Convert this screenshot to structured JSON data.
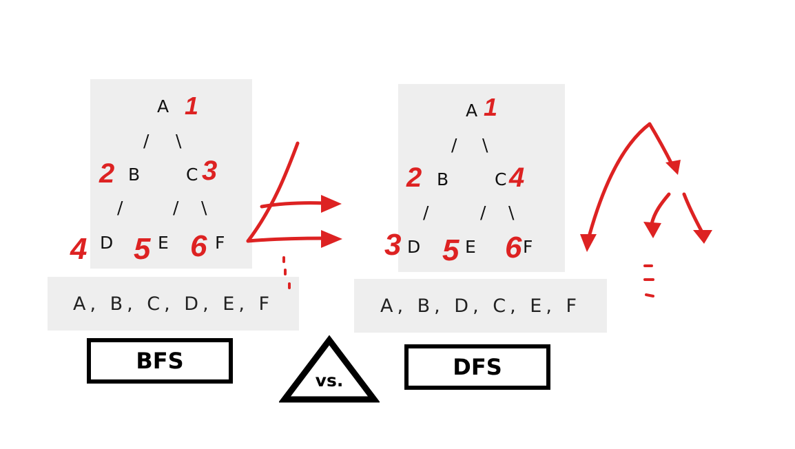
{
  "bfs": {
    "nodes": {
      "a": "A",
      "b": "B",
      "c": "C",
      "d": "D",
      "e": "E",
      "f": "F"
    },
    "edges": {
      "l1": "/",
      "r1": "\\",
      "l2": "/",
      "l3": "/",
      "r3": "\\"
    },
    "order": {
      "a": "1",
      "b": "2",
      "c": "3",
      "d": "4",
      "e": "5",
      "f": "6"
    },
    "sequence": "A, B, C, D, E, F",
    "label": "BFS"
  },
  "dfs": {
    "nodes": {
      "a": "A",
      "b": "B",
      "c": "C",
      "d": "D",
      "e": "E",
      "f": "F"
    },
    "edges": {
      "l1": "/",
      "r1": "\\",
      "l2": "/",
      "l3": "/",
      "r3": "\\"
    },
    "order": {
      "a": "1",
      "b": "2",
      "c": "4",
      "d": "3",
      "e": "5",
      "f": "6"
    },
    "sequence": "A, B, D, C, E, F",
    "label": "DFS"
  },
  "versus": "vs.",
  "colors": {
    "annotation": "#dd2222",
    "panel": "#eeeeee",
    "border": "#000000"
  }
}
